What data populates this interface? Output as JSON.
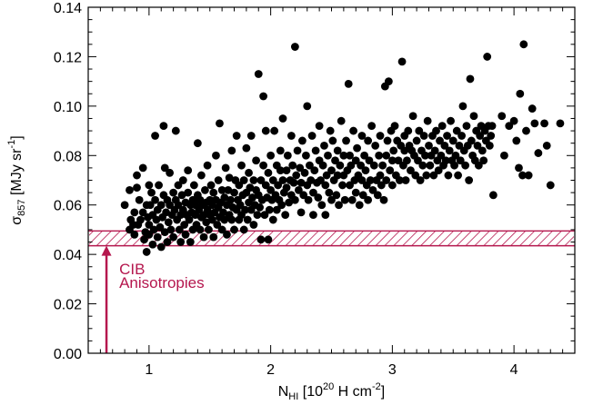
{
  "chart_data": {
    "type": "scatter",
    "xlim": [
      0.5,
      4.5
    ],
    "ylim": [
      0.0,
      0.14
    ],
    "x_ticks": [
      "1",
      "2",
      "3",
      "4"
    ],
    "x_tick_values": [
      1,
      2,
      3,
      4
    ],
    "y_ticks": [
      "0.00",
      "0.02",
      "0.04",
      "0.06",
      "0.08",
      "0.10",
      "0.12",
      "0.14"
    ],
    "y_tick_values": [
      0.0,
      0.02,
      0.04,
      0.06,
      0.08,
      0.1,
      0.12,
      0.14
    ],
    "xlabel": {
      "base": "N",
      "sub": "HI",
      "mid": " [10",
      "sup": "20",
      "tail": " H cm",
      "sup2": "-2",
      "end": "]"
    },
    "ylabel": {
      "base": "σ",
      "sub": "857",
      "mid": " [MJy sr",
      "sup": "-1",
      "end": "]"
    },
    "band": {
      "y_range": [
        0.0435,
        0.0495
      ],
      "color": "#b5174e"
    },
    "annotation": {
      "lines": [
        "CIB",
        "Anisotropies"
      ],
      "color": "#b5174e",
      "arrow_x": 0.65,
      "arrow_y_range": [
        0.0,
        0.0435
      ]
    },
    "grid": false,
    "marker_color": "#000000",
    "points": [
      [
        0.8,
        0.06
      ],
      [
        0.84,
        0.066
      ],
      [
        0.84,
        0.05
      ],
      [
        0.85,
        0.054
      ],
      [
        0.87,
        0.052
      ],
      [
        0.88,
        0.048
      ],
      [
        0.88,
        0.057
      ],
      [
        0.9,
        0.067
      ],
      [
        0.9,
        0.072
      ],
      [
        0.91,
        0.052
      ],
      [
        0.92,
        0.062
      ],
      [
        0.93,
        0.054
      ],
      [
        0.95,
        0.057
      ],
      [
        0.95,
        0.075
      ],
      [
        0.96,
        0.046
      ],
      [
        0.97,
        0.049
      ],
      [
        0.98,
        0.06
      ],
      [
        0.98,
        0.041
      ],
      [
        0.99,
        0.055
      ],
      [
        1.0,
        0.052
      ],
      [
        1.0,
        0.068
      ],
      [
        1.0,
        0.048
      ],
      [
        1.01,
        0.06
      ],
      [
        1.02,
        0.065
      ],
      [
        1.03,
        0.056
      ],
      [
        1.03,
        0.044
      ],
      [
        1.04,
        0.05
      ],
      [
        1.05,
        0.062
      ],
      [
        1.05,
        0.088
      ],
      [
        1.06,
        0.054
      ],
      [
        1.07,
        0.047
      ],
      [
        1.07,
        0.058
      ],
      [
        1.08,
        0.068
      ],
      [
        1.09,
        0.051
      ],
      [
        1.1,
        0.06
      ],
      [
        1.1,
        0.043
      ],
      [
        1.11,
        0.055
      ],
      [
        1.12,
        0.064
      ],
      [
        1.12,
        0.092
      ],
      [
        1.13,
        0.049
      ],
      [
        1.13,
        0.075
      ],
      [
        1.14,
        0.057
      ],
      [
        1.15,
        0.062
      ],
      [
        1.15,
        0.045
      ],
      [
        1.16,
        0.053
      ],
      [
        1.17,
        0.06
      ],
      [
        1.17,
        0.073
      ],
      [
        1.18,
        0.05
      ],
      [
        1.19,
        0.056
      ],
      [
        1.2,
        0.065
      ],
      [
        1.2,
        0.047
      ],
      [
        1.21,
        0.058
      ],
      [
        1.22,
        0.062
      ],
      [
        1.22,
        0.09
      ],
      [
        1.23,
        0.054
      ],
      [
        1.24,
        0.06
      ],
      [
        1.24,
        0.068
      ],
      [
        1.25,
        0.05
      ],
      [
        1.26,
        0.056
      ],
      [
        1.26,
        0.045
      ],
      [
        1.27,
        0.064
      ],
      [
        1.28,
        0.058
      ],
      [
        1.28,
        0.07
      ],
      [
        1.29,
        0.052
      ],
      [
        1.3,
        0.061
      ],
      [
        1.3,
        0.048
      ],
      [
        1.31,
        0.056
      ],
      [
        1.32,
        0.065
      ],
      [
        1.32,
        0.074
      ],
      [
        1.33,
        0.054
      ],
      [
        1.34,
        0.06
      ],
      [
        1.34,
        0.045
      ],
      [
        1.35,
        0.057
      ],
      [
        1.36,
        0.062
      ],
      [
        1.36,
        0.05
      ],
      [
        1.37,
        0.068
      ],
      [
        1.38,
        0.056
      ],
      [
        1.38,
        0.06
      ],
      [
        1.39,
        0.052
      ],
      [
        1.4,
        0.064
      ],
      [
        1.4,
        0.085
      ],
      [
        1.41,
        0.058
      ],
      [
        1.42,
        0.05
      ],
      [
        1.42,
        0.062
      ],
      [
        1.43,
        0.055
      ],
      [
        1.43,
        0.072
      ],
      [
        1.44,
        0.06
      ],
      [
        1.45,
        0.047
      ],
      [
        1.45,
        0.056
      ],
      [
        1.46,
        0.066
      ],
      [
        1.47,
        0.053
      ],
      [
        1.47,
        0.061
      ],
      [
        1.48,
        0.058
      ],
      [
        1.48,
        0.076
      ],
      [
        1.49,
        0.05
      ],
      [
        1.5,
        0.062
      ],
      [
        1.5,
        0.056
      ],
      [
        1.51,
        0.068
      ],
      [
        1.52,
        0.054
      ],
      [
        1.52,
        0.06
      ],
      [
        1.53,
        0.047
      ],
      [
        1.53,
        0.065
      ],
      [
        1.54,
        0.057
      ],
      [
        1.55,
        0.062
      ],
      [
        1.55,
        0.08
      ],
      [
        1.56,
        0.052
      ],
      [
        1.57,
        0.059
      ],
      [
        1.57,
        0.07
      ],
      [
        1.58,
        0.055
      ],
      [
        1.58,
        0.093
      ],
      [
        1.59,
        0.061
      ],
      [
        1.6,
        0.05
      ],
      [
        1.6,
        0.066
      ],
      [
        1.61,
        0.057
      ],
      [
        1.62,
        0.063
      ],
      [
        1.62,
        0.054
      ],
      [
        1.63,
        0.075
      ],
      [
        1.64,
        0.06
      ],
      [
        1.64,
        0.048
      ],
      [
        1.65,
        0.066
      ],
      [
        1.66,
        0.056
      ],
      [
        1.66,
        0.071
      ],
      [
        1.67,
        0.062
      ],
      [
        1.68,
        0.054
      ],
      [
        1.68,
        0.082
      ],
      [
        1.69,
        0.059
      ],
      [
        1.7,
        0.065
      ],
      [
        1.7,
        0.05
      ],
      [
        1.71,
        0.07
      ],
      [
        1.72,
        0.058
      ],
      [
        1.72,
        0.088
      ],
      [
        1.73,
        0.062
      ],
      [
        1.74,
        0.054
      ],
      [
        1.74,
        0.068
      ],
      [
        1.75,
        0.06
      ],
      [
        1.76,
        0.076
      ],
      [
        1.76,
        0.056
      ],
      [
        1.77,
        0.064
      ],
      [
        1.78,
        0.05
      ],
      [
        1.78,
        0.07
      ],
      [
        1.79,
        0.058
      ],
      [
        1.8,
        0.065
      ],
      [
        1.8,
        0.083
      ],
      [
        1.81,
        0.054
      ],
      [
        1.82,
        0.061
      ],
      [
        1.82,
        0.073
      ],
      [
        1.83,
        0.067
      ],
      [
        1.84,
        0.058
      ],
      [
        1.84,
        0.088
      ],
      [
        1.85,
        0.063
      ],
      [
        1.86,
        0.052
      ],
      [
        1.86,
        0.07
      ],
      [
        1.87,
        0.06
      ],
      [
        1.88,
        0.066
      ],
      [
        1.88,
        0.078
      ],
      [
        1.89,
        0.056
      ],
      [
        1.9,
        0.064
      ],
      [
        1.9,
        0.113
      ],
      [
        1.91,
        0.059
      ],
      [
        1.92,
        0.07
      ],
      [
        1.92,
        0.046
      ],
      [
        1.93,
        0.062
      ],
      [
        1.94,
        0.076
      ],
      [
        1.94,
        0.104
      ],
      [
        1.95,
        0.056
      ],
      [
        1.96,
        0.068
      ],
      [
        1.96,
        0.09
      ],
      [
        1.97,
        0.063
      ],
      [
        1.98,
        0.073
      ],
      [
        1.98,
        0.046
      ],
      [
        1.99,
        0.058
      ],
      [
        2.0,
        0.066
      ],
      [
        2.0,
        0.08
      ],
      [
        2.01,
        0.062
      ],
      [
        2.02,
        0.054
      ],
      [
        2.02,
        0.07
      ],
      [
        2.03,
        0.09
      ],
      [
        2.04,
        0.064
      ],
      [
        2.05,
        0.076
      ],
      [
        2.05,
        0.058
      ],
      [
        2.06,
        0.068
      ],
      [
        2.07,
        0.062
      ],
      [
        2.08,
        0.074
      ],
      [
        2.08,
        0.082
      ],
      [
        2.09,
        0.06
      ],
      [
        2.1,
        0.07
      ],
      [
        2.1,
        0.095
      ],
      [
        2.11,
        0.065
      ],
      [
        2.12,
        0.056
      ],
      [
        2.13,
        0.074
      ],
      [
        2.13,
        0.067
      ],
      [
        2.14,
        0.08
      ],
      [
        2.15,
        0.061
      ],
      [
        2.16,
        0.07
      ],
      [
        2.17,
        0.088
      ],
      [
        2.17,
        0.064
      ],
      [
        2.18,
        0.076
      ],
      [
        2.19,
        0.069
      ],
      [
        2.2,
        0.124
      ],
      [
        2.2,
        0.062
      ],
      [
        2.21,
        0.072
      ],
      [
        2.22,
        0.082
      ],
      [
        2.23,
        0.066
      ],
      [
        2.24,
        0.075
      ],
      [
        2.25,
        0.057
      ],
      [
        2.25,
        0.069
      ],
      [
        2.26,
        0.086
      ],
      [
        2.27,
        0.064
      ],
      [
        2.28,
        0.073
      ],
      [
        2.29,
        0.08
      ],
      [
        2.3,
        0.068
      ],
      [
        2.3,
        0.1
      ],
      [
        2.31,
        0.062
      ],
      [
        2.32,
        0.076
      ],
      [
        2.33,
        0.07
      ],
      [
        2.34,
        0.088
      ],
      [
        2.35,
        0.065
      ],
      [
        2.35,
        0.056
      ],
      [
        2.36,
        0.074
      ],
      [
        2.37,
        0.082
      ],
      [
        2.38,
        0.069
      ],
      [
        2.39,
        0.063
      ],
      [
        2.4,
        0.078
      ],
      [
        2.4,
        0.092
      ],
      [
        2.41,
        0.07
      ],
      [
        2.42,
        0.06
      ],
      [
        2.43,
        0.076
      ],
      [
        2.44,
        0.084
      ],
      [
        2.45,
        0.068
      ],
      [
        2.45,
        0.056
      ],
      [
        2.46,
        0.072
      ],
      [
        2.47,
        0.08
      ],
      [
        2.48,
        0.065
      ],
      [
        2.49,
        0.09
      ],
      [
        2.5,
        0.074
      ],
      [
        2.5,
        0.062
      ],
      [
        2.51,
        0.086
      ],
      [
        2.52,
        0.07
      ],
      [
        2.53,
        0.078
      ],
      [
        2.54,
        0.064
      ],
      [
        2.55,
        0.082
      ],
      [
        2.55,
        0.072
      ],
      [
        2.56,
        0.06
      ],
      [
        2.57,
        0.076
      ],
      [
        2.58,
        0.094
      ],
      [
        2.59,
        0.068
      ],
      [
        2.6,
        0.08
      ],
      [
        2.6,
        0.072
      ],
      [
        2.61,
        0.062
      ],
      [
        2.62,
        0.086
      ],
      [
        2.63,
        0.074
      ],
      [
        2.64,
        0.109
      ],
      [
        2.65,
        0.068
      ],
      [
        2.65,
        0.08
      ],
      [
        2.66,
        0.076
      ],
      [
        2.67,
        0.062
      ],
      [
        2.68,
        0.09
      ],
      [
        2.69,
        0.07
      ],
      [
        2.7,
        0.078
      ],
      [
        2.7,
        0.065
      ],
      [
        2.71,
        0.083
      ],
      [
        2.72,
        0.072
      ],
      [
        2.73,
        0.06
      ],
      [
        2.74,
        0.076
      ],
      [
        2.75,
        0.088
      ],
      [
        2.75,
        0.07
      ],
      [
        2.76,
        0.064
      ],
      [
        2.77,
        0.08
      ],
      [
        2.78,
        0.074
      ],
      [
        2.79,
        0.068
      ],
      [
        2.8,
        0.086
      ],
      [
        2.8,
        0.062
      ],
      [
        2.81,
        0.078
      ],
      [
        2.82,
        0.07
      ],
      [
        2.83,
        0.092
      ],
      [
        2.84,
        0.066
      ],
      [
        2.85,
        0.076
      ],
      [
        2.86,
        0.084
      ],
      [
        2.87,
        0.07
      ],
      [
        2.88,
        0.064
      ],
      [
        2.89,
        0.08
      ],
      [
        2.9,
        0.072
      ],
      [
        2.9,
        0.088
      ],
      [
        2.91,
        0.068
      ],
      [
        2.92,
        0.076
      ],
      [
        2.93,
        0.062
      ],
      [
        2.94,
        0.108
      ],
      [
        2.95,
        0.08
      ],
      [
        2.95,
        0.07
      ],
      [
        2.96,
        0.086
      ],
      [
        2.97,
        0.11
      ],
      [
        2.98,
        0.074
      ],
      [
        2.99,
        0.09
      ],
      [
        3.0,
        0.078
      ],
      [
        3.0,
        0.068
      ],
      [
        3.01,
        0.082
      ],
      [
        3.02,
        0.092
      ],
      [
        3.03,
        0.072
      ],
      [
        3.04,
        0.086
      ],
      [
        3.05,
        0.078
      ],
      [
        3.06,
        0.07
      ],
      [
        3.07,
        0.084
      ],
      [
        3.08,
        0.118
      ],
      [
        3.09,
        0.076
      ],
      [
        3.1,
        0.088
      ],
      [
        3.1,
        0.082
      ],
      [
        3.11,
        0.07
      ],
      [
        3.12,
        0.078
      ],
      [
        3.13,
        0.09
      ],
      [
        3.14,
        0.084
      ],
      [
        3.15,
        0.074
      ],
      [
        3.16,
        0.082
      ],
      [
        3.17,
        0.096
      ],
      [
        3.18,
        0.08
      ],
      [
        3.19,
        0.072
      ],
      [
        3.2,
        0.086
      ],
      [
        3.21,
        0.078
      ],
      [
        3.22,
        0.09
      ],
      [
        3.23,
        0.07
      ],
      [
        3.24,
        0.082
      ],
      [
        3.25,
        0.076
      ],
      [
        3.26,
        0.088
      ],
      [
        3.27,
        0.08
      ],
      [
        3.28,
        0.072
      ],
      [
        3.29,
        0.094
      ],
      [
        3.3,
        0.084
      ],
      [
        3.31,
        0.076
      ],
      [
        3.32,
        0.08
      ],
      [
        3.33,
        0.088
      ],
      [
        3.34,
        0.072
      ],
      [
        3.35,
        0.082
      ],
      [
        3.36,
        0.09
      ],
      [
        3.37,
        0.078
      ],
      [
        3.38,
        0.074
      ],
      [
        3.39,
        0.086
      ],
      [
        3.4,
        0.08
      ],
      [
        3.41,
        0.092
      ],
      [
        3.42,
        0.076
      ],
      [
        3.43,
        0.084
      ],
      [
        3.44,
        0.078
      ],
      [
        3.45,
        0.088
      ],
      [
        3.46,
        0.072
      ],
      [
        3.47,
        0.082
      ],
      [
        3.48,
        0.094
      ],
      [
        3.49,
        0.078
      ],
      [
        3.5,
        0.086
      ],
      [
        3.51,
        0.076
      ],
      [
        3.52,
        0.08
      ],
      [
        3.53,
        0.09
      ],
      [
        3.54,
        0.072
      ],
      [
        3.55,
        0.084
      ],
      [
        3.56,
        0.078
      ],
      [
        3.57,
        0.088
      ],
      [
        3.58,
        0.1
      ],
      [
        3.59,
        0.082
      ],
      [
        3.6,
        0.076
      ],
      [
        3.61,
        0.092
      ],
      [
        3.62,
        0.084
      ],
      [
        3.63,
        0.07
      ],
      [
        3.64,
        0.111
      ],
      [
        3.65,
        0.086
      ],
      [
        3.66,
        0.08
      ],
      [
        3.67,
        0.096
      ],
      [
        3.68,
        0.078
      ],
      [
        3.69,
        0.09
      ],
      [
        3.7,
        0.084
      ],
      [
        3.71,
        0.076
      ],
      [
        3.72,
        0.088
      ],
      [
        3.73,
        0.092
      ],
      [
        3.74,
        0.082
      ],
      [
        3.75,
        0.078
      ],
      [
        3.76,
        0.09
      ],
      [
        3.77,
        0.086
      ],
      [
        3.78,
        0.12
      ],
      [
        3.79,
        0.092
      ],
      [
        3.8,
        0.084
      ],
      [
        3.81,
        0.088
      ],
      [
        3.82,
        0.092
      ],
      [
        3.83,
        0.064
      ],
      [
        3.9,
        0.096
      ],
      [
        3.92,
        0.08
      ],
      [
        3.96,
        0.092
      ],
      [
        4.0,
        0.094
      ],
      [
        4.02,
        0.086
      ],
      [
        4.04,
        0.075
      ],
      [
        4.05,
        0.105
      ],
      [
        4.07,
        0.072
      ],
      [
        4.08,
        0.125
      ],
      [
        4.1,
        0.09
      ],
      [
        4.12,
        0.072
      ],
      [
        4.15,
        0.099
      ],
      [
        4.17,
        0.093
      ],
      [
        4.2,
        0.081
      ],
      [
        4.25,
        0.093
      ],
      [
        4.27,
        0.084
      ],
      [
        4.3,
        0.068
      ],
      [
        4.38,
        0.093
      ]
    ]
  }
}
